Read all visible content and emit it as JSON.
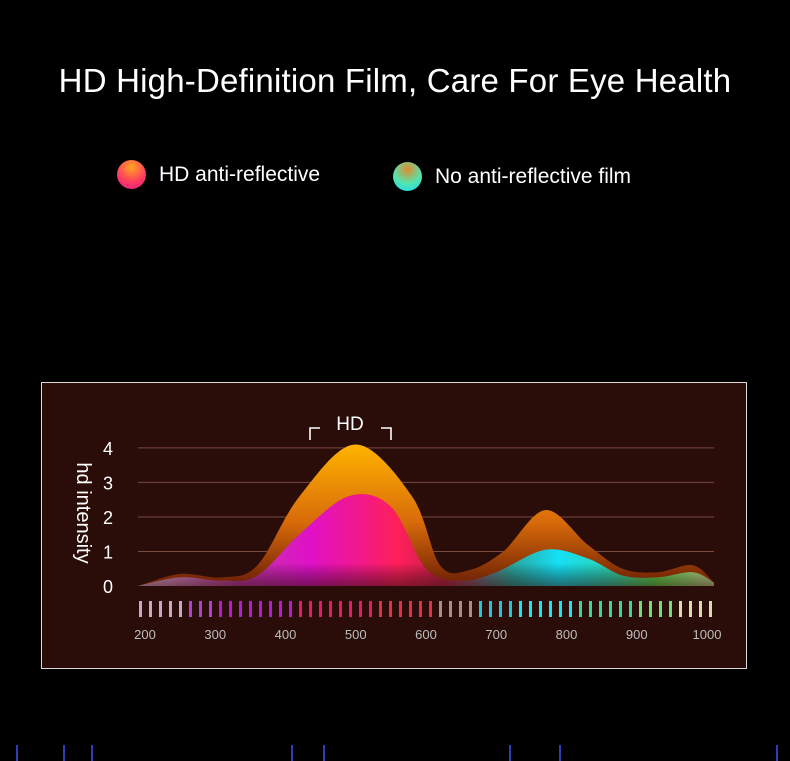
{
  "title": "HD High-Definition Film, Care For Eye Health",
  "legend": [
    {
      "label": "HD anti-reflective"
    },
    {
      "label": "No anti-reflective film"
    }
  ],
  "colors": {
    "background": "#000000",
    "panel": "#2a0d08",
    "hd_gradient": [
      "#ff8a1e",
      "#ff2a72",
      "#d60fa8"
    ],
    "no_film_gradient": [
      "#e0842a",
      "#40e9c6",
      "#18d7f2"
    ],
    "peak_orange": "#ffb400"
  },
  "chart_data": {
    "type": "area",
    "hd_label": "HD",
    "ylabel": "hd intensity",
    "yticks": [
      0,
      1,
      2,
      3,
      4
    ],
    "xticks": [
      200,
      300,
      400,
      500,
      600,
      700,
      800,
      900,
      1000
    ],
    "xlim": [
      190,
      1010
    ],
    "ylim": [
      0,
      4.2
    ],
    "series": [
      {
        "name": "No anti-reflective film",
        "x": [
          190,
          250,
          310,
          360,
          420,
          500,
          580,
          620,
          660,
          710,
          770,
          830,
          880,
          930,
          980,
          1010
        ],
        "y": [
          0.0,
          0.35,
          0.25,
          0.6,
          2.6,
          4.1,
          2.6,
          0.6,
          0.45,
          1.0,
          2.2,
          1.2,
          0.5,
          0.4,
          0.6,
          0.1
        ]
      },
      {
        "name": "HD anti-reflective",
        "x": [
          190,
          250,
          310,
          360,
          420,
          490,
          550,
          600,
          650,
          700,
          770,
          830,
          880,
          930,
          980,
          1010
        ],
        "y": [
          0.0,
          0.25,
          0.15,
          0.3,
          1.5,
          2.6,
          2.3,
          0.5,
          0.15,
          0.4,
          1.05,
          0.8,
          0.3,
          0.25,
          0.4,
          0.1
        ]
      }
    ]
  }
}
